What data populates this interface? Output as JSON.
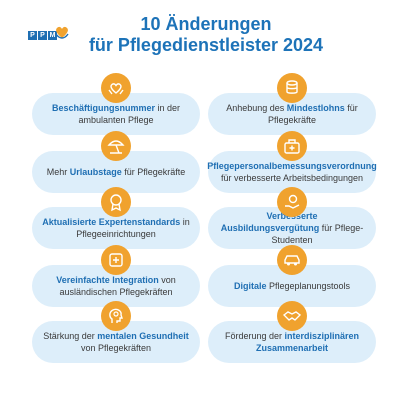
{
  "logo": {
    "letters": [
      "P",
      "P",
      "M"
    ]
  },
  "title": {
    "line1": "10 Änderungen",
    "line2": "für Pflegedienstleister 2024"
  },
  "colors": {
    "title": "#1d73b8",
    "icon_bg": "#f0a22e",
    "card_bg": "#ddeefa",
    "highlight": "#1f6fb3"
  },
  "items": [
    {
      "icon": "hands-heart-icon",
      "pre": "",
      "bold": "Beschäftigungsnummer",
      "post": " in der ambulanten Pflege"
    },
    {
      "icon": "coins-icon",
      "pre": "Anhebung des ",
      "bold": "Mindestlohns",
      "post": " für Pflegekräfte"
    },
    {
      "icon": "beach-umbrella-icon",
      "pre": "Mehr ",
      "bold": "Urlaubstage",
      "post": " für Pflegekräfte"
    },
    {
      "icon": "medical-briefcase-icon",
      "pre": "",
      "bold": "Pflegepersonalbemessungsverordnung",
      "post": " für verbesserte Arbeitsbedingungen"
    },
    {
      "icon": "expert-badge-icon",
      "pre": "",
      "bold": "Aktualisierte Expertenstandards",
      "post": " in Pflegeeinrichtungen"
    },
    {
      "icon": "money-hand-icon",
      "pre": "",
      "bold": "Verbesserte Ausbildungsvergütung",
      "post": " für Pflege-Studenten"
    },
    {
      "icon": "integration-icon",
      "pre": "",
      "bold": "Vereinfachte Integration",
      "post": " von ausländischen Pflegekräften"
    },
    {
      "icon": "digital-car-icon",
      "pre": "",
      "bold": "Digitale",
      "post": " Pflegeplanungstools"
    },
    {
      "icon": "head-brain-icon",
      "pre": "Stärkung der ",
      "bold": "mentalen Gesundheit",
      "post": " von Pflegekräften"
    },
    {
      "icon": "handshake-icon",
      "pre": "Förderung der ",
      "bold": "interdisziplinären Zusammenarbeit",
      "post": ""
    }
  ]
}
